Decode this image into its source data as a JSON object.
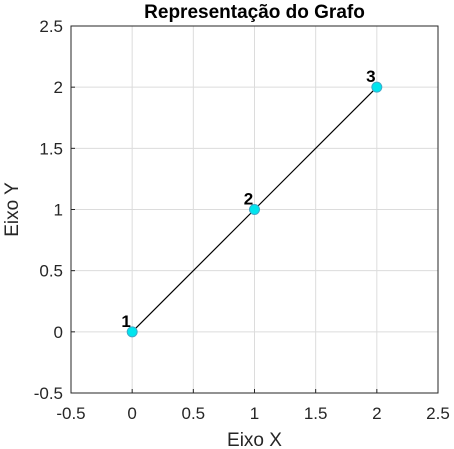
{
  "chart_data": {
    "type": "scatter",
    "title": "Representação do Grafo",
    "xlabel": "Eixo X",
    "ylabel": "Eixo Y",
    "xlim": [
      -0.5,
      2.5
    ],
    "ylim": [
      -0.5,
      2.5
    ],
    "xticks": [
      -0.5,
      0,
      0.5,
      1,
      1.5,
      2,
      2.5
    ],
    "yticks": [
      -0.5,
      0,
      0.5,
      1,
      1.5,
      2,
      2.5
    ],
    "xtick_labels": [
      "-0.5",
      "0",
      "0.5",
      "1",
      "1.5",
      "2",
      "2.5"
    ],
    "ytick_labels": [
      "-0.5",
      "0",
      "0.5",
      "1",
      "1.5",
      "2",
      "2.5"
    ],
    "grid": true,
    "nodes": [
      {
        "label": "1",
        "x": 0,
        "y": 0
      },
      {
        "label": "2",
        "x": 1,
        "y": 1
      },
      {
        "label": "3",
        "x": 2,
        "y": 2
      }
    ],
    "edges": [
      {
        "from": "1",
        "to": "2"
      },
      {
        "from": "2",
        "to": "3"
      }
    ],
    "colors": {
      "node_fill": "#00e5ee",
      "node_stroke": "#3fa9c9",
      "edge": "#000000",
      "grid": "#dcdcdc",
      "axis": "#262626"
    }
  }
}
